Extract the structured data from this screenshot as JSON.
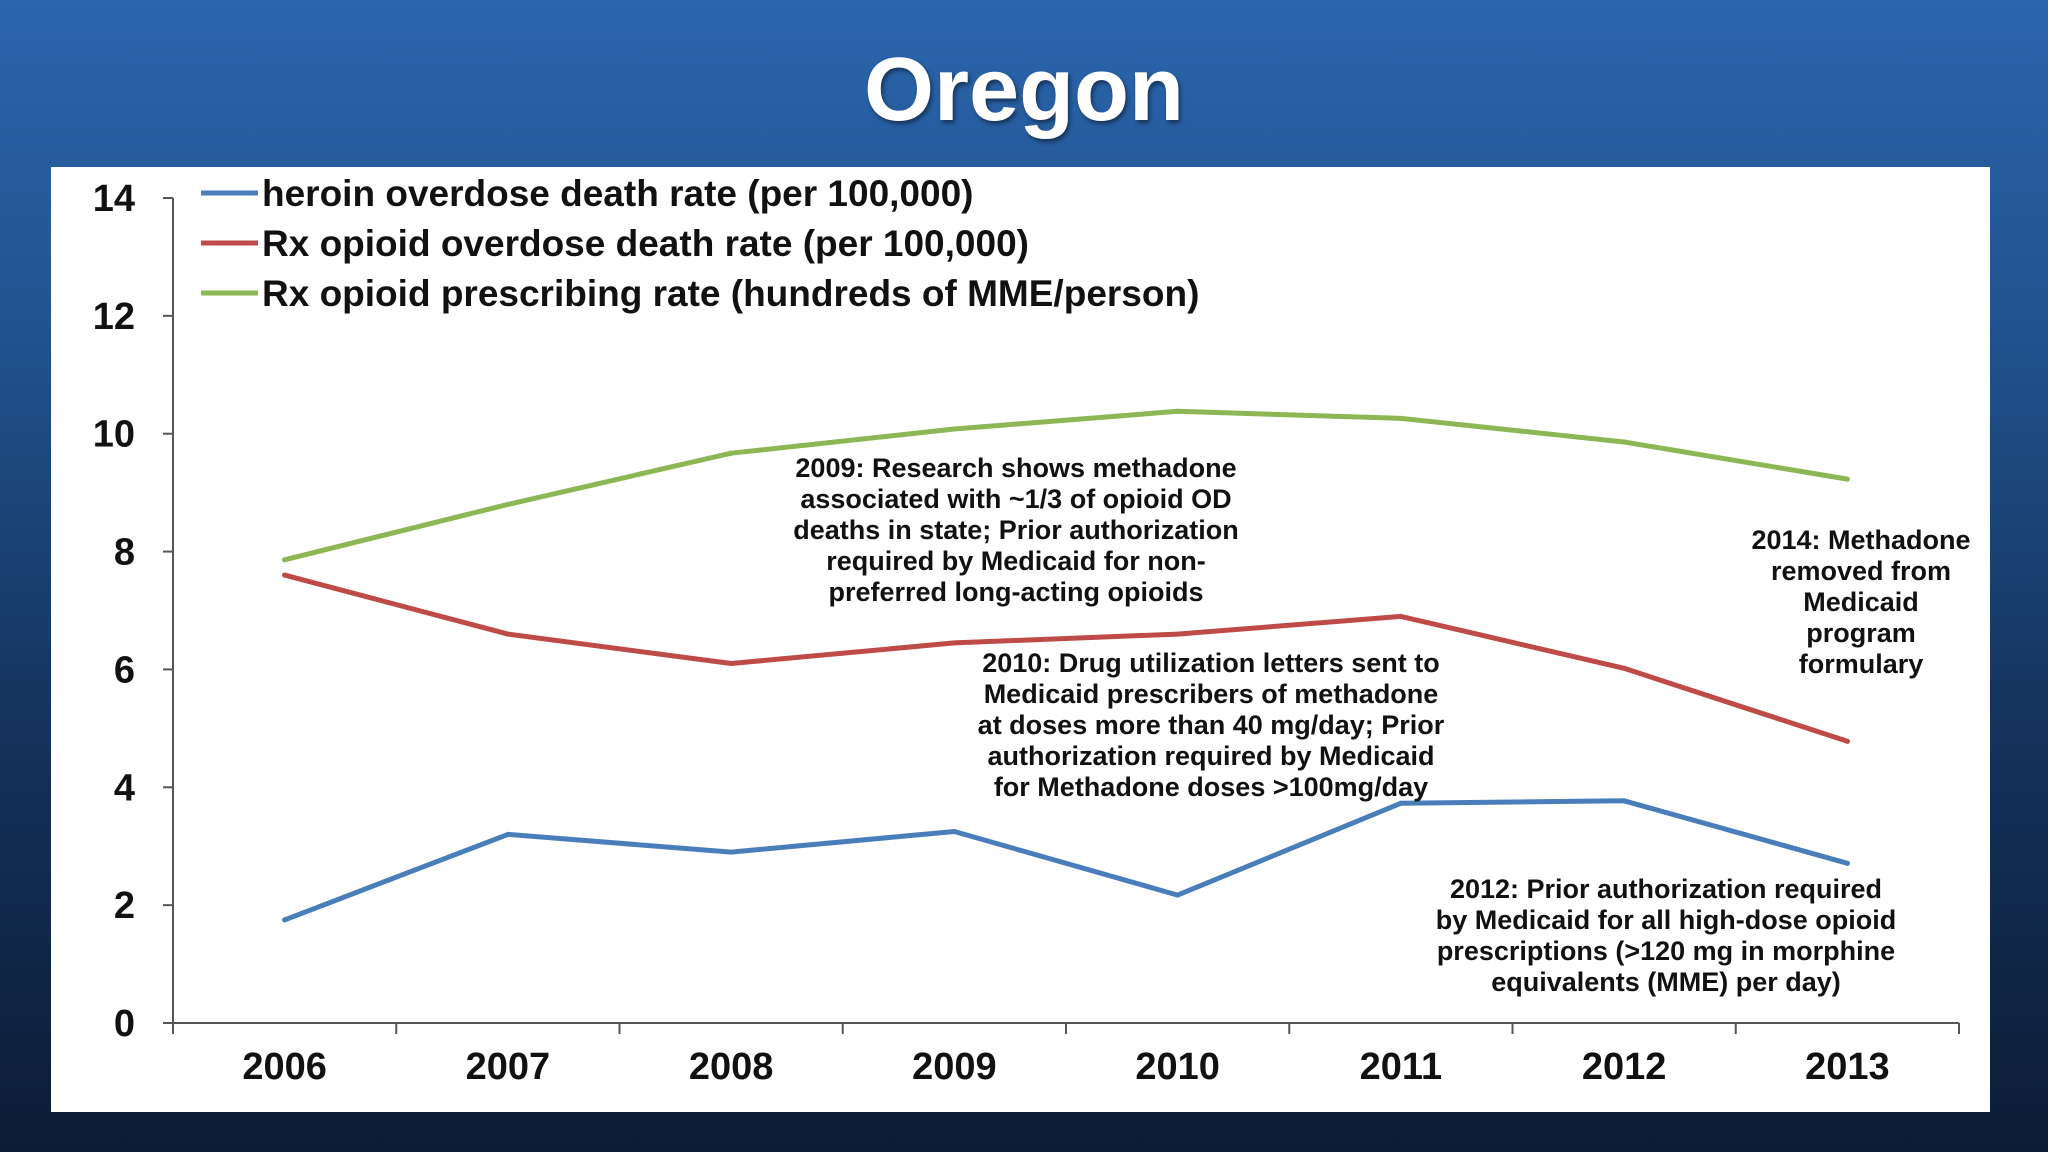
{
  "title": "Oregon",
  "chart_data": {
    "type": "line",
    "x": [
      "2006",
      "2007",
      "2008",
      "2009",
      "2010",
      "2011",
      "2012",
      "2013"
    ],
    "ylim": [
      0,
      14
    ],
    "yticks": [
      "0",
      "2",
      "4",
      "6",
      "8",
      "10",
      "12",
      "14"
    ],
    "series": [
      {
        "name": "heroin overdose death rate (per 100,000)",
        "color": "#4a7ebb",
        "values": [
          1.75,
          3.2,
          2.9,
          3.25,
          2.17,
          3.73,
          3.77,
          2.71
        ]
      },
      {
        "name": "Rx opioid overdose death rate (per 100,000)",
        "color": "#be4b48",
        "values": [
          7.6,
          6.6,
          6.1,
          6.45,
          6.6,
          6.9,
          6.02,
          4.78
        ]
      },
      {
        "name": "Rx opioid prescribing rate (hundreds of MME/person)",
        "color": "#8db654",
        "values": [
          7.86,
          8.8,
          9.67,
          10.08,
          10.38,
          10.26,
          9.86,
          9.23
        ]
      }
    ],
    "legend_position": "top-left",
    "grid": false,
    "annotations": [
      {
        "id": "2009",
        "text": "2009: Research shows methadone\nassociated with ~1/3 of opioid OD\ndeaths in state; Prior authorization\nrequired by Medicaid for non-\npreferred long-acting opioids"
      },
      {
        "id": "2010",
        "text": "2010: Drug utilization letters sent to\nMedicaid prescribers of methadone\nat doses more than 40 mg/day; Prior\nauthorization required by Medicaid\nfor Methadone doses >100mg/day"
      },
      {
        "id": "2014",
        "text": "2014: Methadone\nremoved from\nMedicaid\nprogram\nformulary"
      },
      {
        "id": "2012",
        "text": "2012: Prior authorization required\nby Medicaid for all high-dose opioid\nprescriptions (>120 mg in morphine\nequivalents (MME) per day)"
      }
    ]
  }
}
